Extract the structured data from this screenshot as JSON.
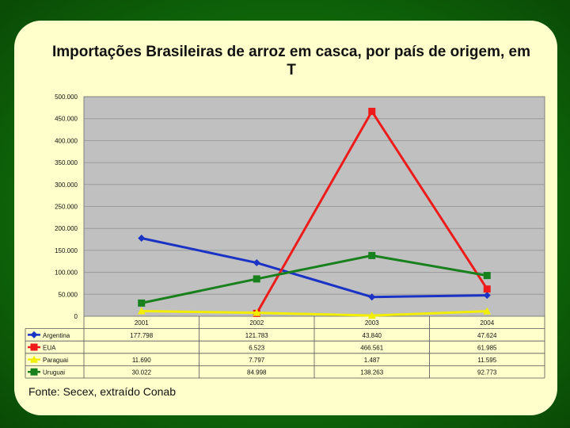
{
  "title": "Importações Brasileiras de arroz em casca, por país de origem, em T",
  "source": "Fonte: Secex, extraído Conab",
  "chart_data": {
    "type": "line",
    "categories": [
      "2001",
      "2002",
      "2003",
      "2004"
    ],
    "ylim": [
      0,
      500000
    ],
    "ytick_labels": [
      "500.000",
      "450.000",
      "400.000",
      "350.000",
      "300.000",
      "250.000",
      "200.000",
      "150.000",
      "100.000",
      "50.000",
      "0"
    ],
    "grid": true,
    "legend": "data-table-left",
    "series": [
      {
        "name": "Argentina",
        "color": "#1a33c4",
        "marker": "diamond",
        "values": [
          177798,
          121783,
          43840,
          47624
        ],
        "labels": [
          "177.798",
          "121.783",
          "43.840",
          "47.624"
        ]
      },
      {
        "name": "EUA",
        "color": "#ee1b1b",
        "marker": "square",
        "values": [
          null,
          6523,
          466561,
          61985
        ],
        "labels": [
          "",
          "6.523",
          "466.561",
          "61.985"
        ]
      },
      {
        "name": "Paraguai",
        "color": "#f2ee00",
        "marker": "triangle",
        "values": [
          11690,
          7797,
          1487,
          11595
        ],
        "labels": [
          "11.690",
          "7.797",
          "1.487",
          "11.595"
        ]
      },
      {
        "name": "Uruguai",
        "color": "#18801c",
        "marker": "square",
        "values": [
          30022,
          84998,
          138263,
          92773
        ],
        "labels": [
          "30.022",
          "84.998",
          "138.263",
          "92.773"
        ]
      }
    ]
  }
}
